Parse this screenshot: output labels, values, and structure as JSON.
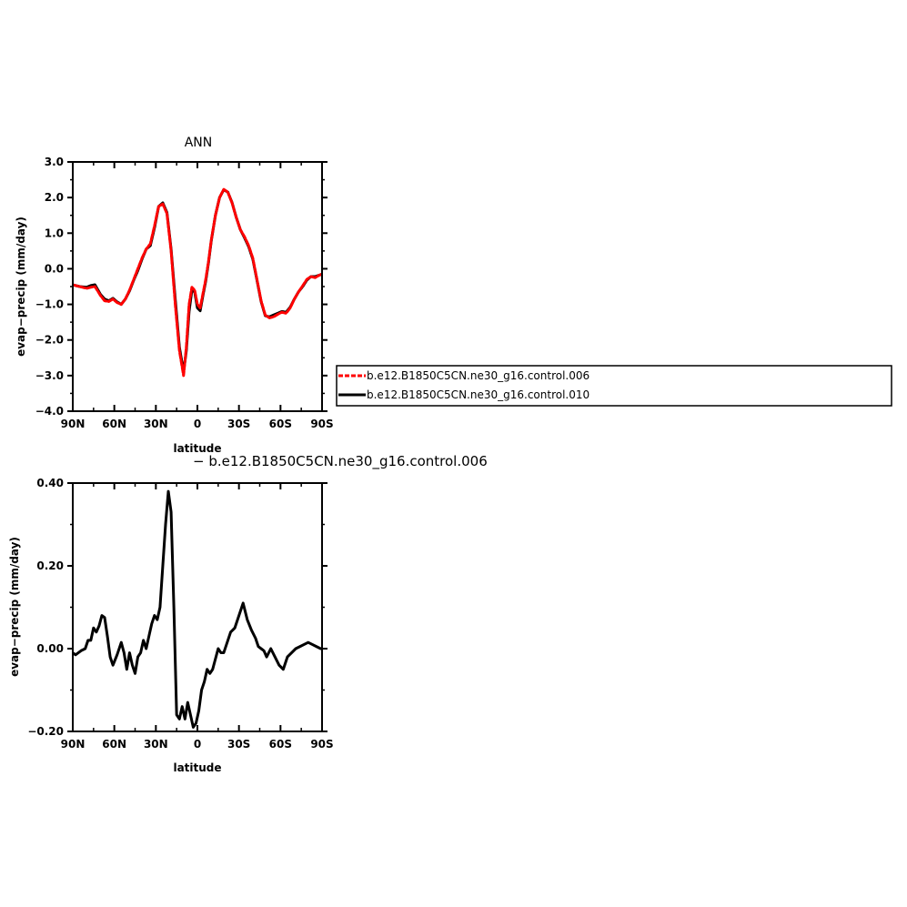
{
  "chart_data": [
    {
      "type": "line",
      "title": "ANN",
      "xlabel": "latitude",
      "ylabel": "evap−precip (mm/day)",
      "xlim": [
        90,
        -90
      ],
      "ylim": [
        -4.0,
        3.0
      ],
      "xticks": [
        90,
        60,
        30,
        0,
        -30,
        -60,
        -90
      ],
      "xtick_labels": [
        "90N",
        "60N",
        "30N",
        "0",
        "30S",
        "60S",
        "90S"
      ],
      "yticks": [
        -4.0,
        -3.0,
        -2.0,
        -1.0,
        0.0,
        1.0,
        2.0,
        3.0
      ],
      "ytick_labels": [
        "−4.0",
        "−3.0",
        "−2.0",
        "−1.0",
        "0.0",
        "1.0",
        "2.0",
        "3.0"
      ],
      "legend_position": "right",
      "grid": false,
      "x": [
        90,
        85,
        80,
        77,
        74,
        70,
        67,
        64,
        61,
        58,
        55,
        52,
        49,
        46,
        43,
        40,
        37,
        34,
        31,
        28,
        25,
        22,
        19,
        16,
        13,
        10,
        8,
        6,
        4,
        2,
        0,
        -2,
        -4,
        -6,
        -8,
        -10,
        -13,
        -16,
        -19,
        -22,
        -25,
        -28,
        -31,
        -34,
        -37,
        -40,
        -43,
        -46,
        -49,
        -52,
        -55,
        -58,
        -61,
        -64,
        -67,
        -70,
        -73,
        -76,
        -79,
        -82,
        -85,
        -88,
        -90
      ],
      "series": [
        {
          "name": "b.e12.B1850C5CN.ne30_g16.control.006",
          "color": "#ff0000",
          "dash": true,
          "values": [
            -0.45,
            -0.5,
            -0.55,
            -0.52,
            -0.5,
            -0.75,
            -0.9,
            -0.92,
            -0.85,
            -0.95,
            -1.0,
            -0.85,
            -0.6,
            -0.3,
            0.0,
            0.3,
            0.55,
            0.7,
            1.2,
            1.75,
            1.82,
            1.55,
            0.5,
            -1.0,
            -2.3,
            -3.0,
            -2.2,
            -1.0,
            -0.52,
            -0.6,
            -1.0,
            -1.1,
            -0.7,
            -0.3,
            0.2,
            0.8,
            1.5,
            2.0,
            2.23,
            2.15,
            1.85,
            1.45,
            1.1,
            0.9,
            0.65,
            0.3,
            -0.3,
            -0.9,
            -1.3,
            -1.38,
            -1.35,
            -1.28,
            -1.22,
            -1.25,
            -1.1,
            -0.85,
            -0.65,
            -0.48,
            -0.3,
            -0.22,
            -0.25,
            -0.18,
            -0.15
          ]
        },
        {
          "name": "b.e12.B1850C5CN.ne30_g16.control.010",
          "color": "#000000",
          "dash": false,
          "values": [
            -0.45,
            -0.5,
            -0.52,
            -0.47,
            -0.45,
            -0.72,
            -0.85,
            -0.9,
            -0.83,
            -0.93,
            -1.0,
            -0.85,
            -0.62,
            -0.32,
            -0.05,
            0.27,
            0.55,
            0.65,
            1.15,
            1.75,
            1.85,
            1.58,
            0.55,
            -0.85,
            -2.2,
            -2.9,
            -2.3,
            -1.2,
            -0.6,
            -0.65,
            -1.1,
            -1.18,
            -0.75,
            -0.35,
            0.17,
            0.78,
            1.5,
            2.0,
            2.22,
            2.15,
            1.86,
            1.45,
            1.1,
            0.87,
            0.62,
            0.27,
            -0.32,
            -0.92,
            -1.32,
            -1.35,
            -1.3,
            -1.25,
            -1.2,
            -1.22,
            -1.08,
            -0.85,
            -0.65,
            -0.5,
            -0.32,
            -0.22,
            -0.22,
            -0.18,
            -0.15
          ]
        }
      ]
    },
    {
      "type": "line",
      "title": "− b.e12.B1850C5CN.ne30_g16.control.006",
      "xlabel": "latitude",
      "ylabel": "evap−precip (mm/day)",
      "xlim": [
        90,
        -90
      ],
      "ylim": [
        -0.2,
        0.4
      ],
      "xticks": [
        90,
        60,
        30,
        0,
        -30,
        -60,
        -90
      ],
      "xtick_labels": [
        "90N",
        "60N",
        "30N",
        "0",
        "30S",
        "60S",
        "90S"
      ],
      "yticks": [
        -0.2,
        0.0,
        0.2,
        0.4
      ],
      "ytick_labels": [
        "−0.20",
        "0.00",
        "0.20",
        "0.40"
      ],
      "grid": false,
      "x": [
        90,
        88,
        86,
        84,
        81,
        79,
        77,
        75,
        73,
        71,
        69,
        67,
        65,
        63,
        61,
        58,
        55,
        53,
        51,
        49,
        47,
        45,
        43,
        41,
        39,
        37,
        35,
        33,
        31,
        29,
        27,
        25,
        23,
        21,
        19,
        17,
        15,
        13,
        11,
        9,
        7,
        5,
        3,
        1,
        -1,
        -3,
        -5,
        -7,
        -9,
        -11,
        -13,
        -15,
        -17,
        -19,
        -21,
        -24,
        -27,
        -30,
        -33,
        -36,
        -39,
        -42,
        -44,
        -46,
        -48,
        -50,
        -53,
        -56,
        -59,
        -62,
        -65,
        -68,
        -71,
        -74,
        -77,
        -80,
        -83,
        -86,
        -89,
        -90
      ],
      "series": [
        {
          "name": "",
          "color": "#000000",
          "dash": false,
          "values": [
            -0.01,
            -0.015,
            -0.01,
            -0.005,
            0.0,
            0.02,
            0.02,
            0.05,
            0.04,
            0.055,
            0.08,
            0.075,
            0.03,
            -0.02,
            -0.04,
            -0.015,
            0.015,
            -0.01,
            -0.05,
            -0.01,
            -0.04,
            -0.06,
            -0.02,
            -0.01,
            0.02,
            0.0,
            0.03,
            0.06,
            0.08,
            0.07,
            0.1,
            0.2,
            0.3,
            0.38,
            0.33,
            0.1,
            -0.16,
            -0.17,
            -0.14,
            -0.17,
            -0.13,
            -0.16,
            -0.19,
            -0.18,
            -0.15,
            -0.1,
            -0.08,
            -0.05,
            -0.06,
            -0.05,
            -0.025,
            0.0,
            -0.01,
            -0.01,
            0.01,
            0.04,
            0.05,
            0.08,
            0.11,
            0.07,
            0.045,
            0.025,
            0.005,
            0.0,
            -0.005,
            -0.02,
            0.0,
            -0.02,
            -0.04,
            -0.05,
            -0.02,
            -0.01,
            0.0,
            0.005,
            0.01,
            0.015,
            0.01,
            0.005,
            0.0,
            0.0
          ]
        }
      ]
    }
  ]
}
